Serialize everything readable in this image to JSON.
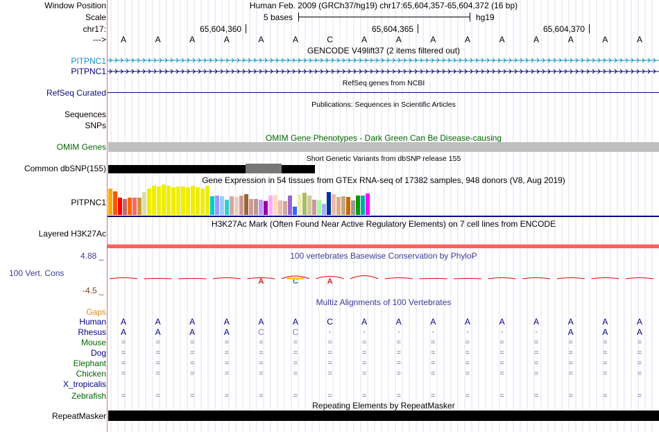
{
  "header": {
    "window_position_label": "Window Position",
    "window_position_value": "Human Feb. 2009 (GRCh37/hg19)   chr17:65,604,357-65,604,372 (16 bp)",
    "scale_label": "Scale",
    "scale_text": "5 bases",
    "scale_db": "hg19",
    "chrom_label": "chr17:",
    "arrow_label": "--->",
    "coordinates": [
      "65,604,360",
      "65,604,365",
      "65,604,370"
    ]
  },
  "bases": [
    "A",
    "A",
    "A",
    "A",
    "A",
    "A",
    "C",
    "A",
    "A",
    "A",
    "A",
    "A",
    "A",
    "A",
    "A",
    "A"
  ],
  "tracks": {
    "gencode": {
      "title": "GENCODE V49lift37 (2 items filtered out)",
      "items": [
        "PITPNC1",
        "PITPNC1"
      ],
      "colors": [
        "#0c8fc6",
        "#000080"
      ]
    },
    "refseq": {
      "title": "RefSeq genes from NCBI",
      "label": "RefSeq Curated",
      "color": "#0c0c78"
    },
    "publications": {
      "title": "Publications: Sequences in Scientific Articles",
      "label": "Sequences"
    },
    "snps_label": "SNPs",
    "omim": {
      "title": "OMIM Gene Phenotypes - Dark Green Can Be Disease-causing",
      "label": "OMIM Genes",
      "color": "#006400",
      "bar_color": "#bebebe"
    },
    "dbsnp": {
      "title": "Short Genetic Variants from dbSNP release 155",
      "label": "Common dbSNP(155)"
    },
    "gtex": {
      "title": "Gene Expression in 54 tissues from GTEx RNA-seq of 17382 samples, 948 donors (V8, Aug 2019)",
      "label": "PITPNC1",
      "values": [
        38,
        34,
        25,
        23,
        25,
        25,
        25,
        33,
        38,
        42,
        41,
        44,
        42,
        40,
        41,
        41,
        40,
        42,
        40,
        38,
        42,
        27,
        28,
        27,
        22,
        27,
        26,
        28,
        30,
        23,
        23,
        22,
        20,
        28,
        29,
        21,
        20,
        28,
        12,
        30,
        32,
        28,
        22,
        21,
        16,
        33,
        30,
        26,
        27,
        26,
        21,
        28,
        28,
        31
      ],
      "colors": [
        "#FFAA00",
        "#FF5500",
        "#FF0000",
        "#CC6666",
        "#FF6600",
        "#FF6666",
        "#CC9933",
        "#DDDDAA",
        "#EEEE00",
        "#EEEE00",
        "#EEEE00",
        "#EEEE00",
        "#EEEE00",
        "#EEEE00",
        "#EEEE00",
        "#EEEE00",
        "#EEEE00",
        "#EEEE00",
        "#EEEE00",
        "#EEEE00",
        "#EEEE00",
        "#00CCCC",
        "#9999FF",
        "#99CCFF",
        "#33CCCC",
        "#CCAAAA",
        "#EECCBB",
        "#CC9999",
        "#996633",
        "#CC9999",
        "#BB9988",
        "#BB99FF",
        "#990099",
        "#FFAAFF",
        "#FFDDBB",
        "#EEBBAA",
        "#CCAA99",
        "#9966CC",
        "#3366FF",
        "#EEEEAA",
        "#AABB66",
        "#CCCC99",
        "#CC9999",
        "#99FF99",
        "#AAAAFF",
        "#003399",
        "#EEBBAA",
        "#DDAA88",
        "#BBAA88",
        "#CC6600",
        "#999999",
        "#009900",
        "#00AAAA",
        "#FF00FF"
      ]
    },
    "h3k27ac": {
      "title": "H3K27Ac Mark (Often Found Near Active Regulatory Elements) on 7 cell lines from ENCODE",
      "label": "Layered H3K27Ac"
    },
    "cons": {
      "title": "100 vertebrates Basewise Conservation by PhyloP",
      "label": "100 Vert. Cons",
      "max": "4.88",
      "min": "-4.5",
      "max_suffix": "_",
      "min_suffix": "_",
      "logo_letters": [
        "A",
        "C",
        "A"
      ]
    },
    "multiz": {
      "title": "Multiz Alignments of 100 Vertebrates",
      "gaps_label": "Gaps",
      "species": [
        {
          "name": "Human",
          "color": "#000080",
          "bases": [
            "A",
            "A",
            "A",
            "A",
            "A",
            "A",
            "C",
            "A",
            "A",
            "A",
            "A",
            "A",
            "A",
            "A",
            "A",
            "A"
          ]
        },
        {
          "name": "Rhesus",
          "color": "#000080",
          "bases": [
            "A",
            "A",
            "A",
            "A",
            "C",
            "C",
            "-",
            "-",
            "-",
            "-",
            "-",
            "-",
            "-",
            "A",
            "A",
            "A"
          ]
        },
        {
          "name": "Mouse",
          "color": "#006400",
          "bases": [
            "=",
            "=",
            "=",
            "=",
            "=",
            "=",
            "=",
            "=",
            "=",
            "=",
            "=",
            "=",
            "=",
            "=",
            "=",
            "="
          ]
        },
        {
          "name": "Dog",
          "color": "#000080",
          "bases": [
            "=",
            "=",
            "=",
            "=",
            "=",
            "=",
            "=",
            "=",
            "=",
            "=",
            "=",
            "=",
            "=",
            "=",
            "=",
            "="
          ]
        },
        {
          "name": "Elephant",
          "color": "#006400",
          "bases": [
            "=",
            "=",
            "=",
            "=",
            "=",
            "=",
            "=",
            "=",
            "=",
            "=",
            "=",
            "=",
            "=",
            "=",
            "=",
            "="
          ]
        },
        {
          "name": "Chicken",
          "color": "#006400",
          "bases": [
            "=",
            "=",
            "=",
            "=",
            "=",
            "=",
            "=",
            "=",
            "=",
            "=",
            "=",
            "=",
            "=",
            "=",
            "=",
            "="
          ]
        },
        {
          "name": "X_tropicalis",
          "color": "#000080",
          "bases": [
            "",
            "",
            "",
            "",
            "",
            "",
            "",
            "",
            "",
            "",
            "",
            "",
            "",
            "",
            "",
            ""
          ]
        },
        {
          "name": "Zebrafish",
          "color": "#006400",
          "bases": [
            "=",
            "=",
            "=",
            "=",
            "=",
            "=",
            "=",
            "=",
            "=",
            "=",
            "=",
            "=",
            "=",
            "=",
            "=",
            "="
          ]
        }
      ]
    },
    "repeatmasker": {
      "title": "Repeating Elements by RepeatMasker",
      "label": "RepeatMasker"
    }
  },
  "colors": {
    "separator": "#d07070",
    "grid": "#dfe1ef",
    "cons_label": "#3c3c96",
    "cons_min": "#843d2a",
    "gaps": "#e0881a",
    "h3k27ac_line": "#ff5f5f"
  }
}
